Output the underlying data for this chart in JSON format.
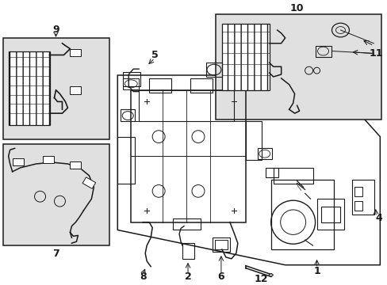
{
  "bg_color": "#ffffff",
  "fig_width": 4.89,
  "fig_height": 3.6,
  "dpi": 100,
  "lc": "#1a1a1a",
  "tc": "#1a1a1a",
  "box_fill": "#e0e0e0",
  "fs": 8
}
